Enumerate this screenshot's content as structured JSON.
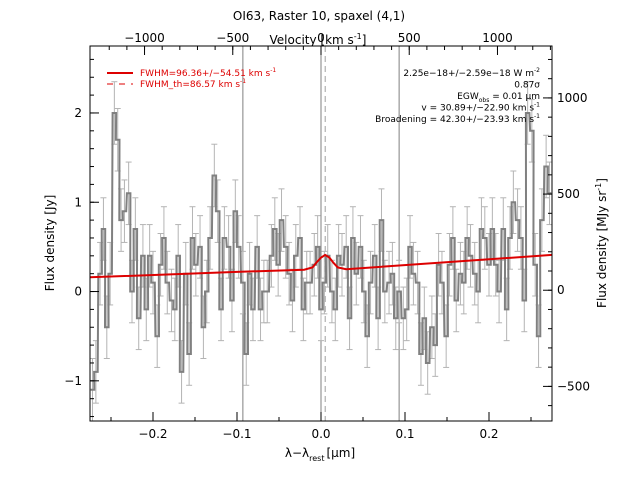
{
  "chart_data": {
    "type": "line",
    "title": "OI63, Raster 10, spaxel (4,1)",
    "xlabel": "λ−λ",
    "xlabel_sub": "rest",
    "xlabel_unit": "[μm]",
    "ylabel_left": "Flux density [Jy]",
    "ylabel_right": "Flux density [MJy sr",
    "ylabel_right_sup": "-1",
    "ylabel_right_close": "]",
    "top_axis_label": "Velocity [km s",
    "top_axis_label_sup": "-1",
    "top_axis_label_close": "]",
    "xlim": [
      -0.275,
      0.275
    ],
    "ylim": [
      -1.45,
      2.75
    ],
    "ylim_right": [
      -680,
      1270
    ],
    "x_ticks": [
      -0.2,
      -0.1,
      0.0,
      0.1,
      0.2
    ],
    "x_tick_labels": [
      "−0.2",
      "−0.1",
      "0.0",
      "0.1",
      "0.2"
    ],
    "y_ticks": [
      -1,
      0,
      1,
      2
    ],
    "y_tick_labels": [
      "−1",
      "0",
      "1",
      "2"
    ],
    "y_right_ticks": [
      -500,
      0,
      500,
      1000
    ],
    "y_right_tick_labels": [
      "−500",
      "0",
      "500",
      "1000"
    ],
    "top_ticks_velocity": [
      -1000,
      -500,
      0,
      500,
      1000
    ],
    "top_tick_labels": [
      "−1000",
      "−500",
      "0",
      "500",
      "1000"
    ],
    "velocity_per_micron": 4760,
    "vertical_lines": [
      -0.093,
      0.0,
      0.093
    ],
    "center_dashed_line": 0.005,
    "legend": [
      {
        "label": "FWHM=96.36+/−54.51 km s",
        "sup": "-1",
        "style": "solid"
      },
      {
        "label": "FWHM_th=86.57 km s",
        "sup": "-1",
        "style": "dashed"
      }
    ],
    "annotations": [
      {
        "text": "2.25e−18+/−2.59e−18 W m",
        "sup": "-2"
      },
      {
        "text": "0.87σ"
      },
      {
        "text": "EGW",
        "sub": "obs",
        "tail": " = 0.01 μm"
      },
      {
        "text": "v = 30.89+/−22.90 km s",
        "sup": "-1"
      },
      {
        "text": "Broadening = 42.30+/−23.93 km s",
        "sup": "-1"
      }
    ],
    "series": [
      {
        "name": "data",
        "x": [
          -0.272,
          -0.268,
          -0.263,
          -0.259,
          -0.255,
          -0.251,
          -0.246,
          -0.242,
          -0.238,
          -0.234,
          -0.229,
          -0.225,
          -0.221,
          -0.217,
          -0.212,
          -0.208,
          -0.204,
          -0.2,
          -0.195,
          -0.191,
          -0.187,
          -0.183,
          -0.178,
          -0.174,
          -0.17,
          -0.166,
          -0.161,
          -0.157,
          -0.153,
          -0.149,
          -0.144,
          -0.14,
          -0.136,
          -0.132,
          -0.127,
          -0.123,
          -0.119,
          -0.115,
          -0.11,
          -0.106,
          -0.102,
          -0.098,
          -0.093,
          -0.089,
          -0.085,
          -0.081,
          -0.076,
          -0.072,
          -0.068,
          -0.064,
          -0.059,
          -0.055,
          -0.051,
          -0.047,
          -0.042,
          -0.038,
          -0.034,
          -0.03,
          -0.025,
          -0.021,
          -0.017,
          -0.013,
          -0.008,
          -0.004,
          0.0,
          0.004,
          0.008,
          0.013,
          0.017,
          0.021,
          0.025,
          0.03,
          0.034,
          0.038,
          0.042,
          0.047,
          0.051,
          0.055,
          0.059,
          0.064,
          0.068,
          0.072,
          0.076,
          0.081,
          0.085,
          0.089,
          0.093,
          0.098,
          0.102,
          0.106,
          0.11,
          0.115,
          0.119,
          0.123,
          0.127,
          0.132,
          0.136,
          0.14,
          0.144,
          0.149,
          0.153,
          0.157,
          0.161,
          0.166,
          0.17,
          0.174,
          0.178,
          0.183,
          0.187,
          0.191,
          0.195,
          0.2,
          0.204,
          0.208,
          0.212,
          0.217,
          0.221,
          0.225,
          0.229,
          0.234,
          0.238,
          0.242,
          0.246,
          0.251,
          0.255,
          0.259,
          0.263,
          0.268,
          0.272
        ],
        "y": [
          -1.1,
          -0.9,
          0.2,
          0.7,
          -0.4,
          0.2,
          2.0,
          1.7,
          0.8,
          0.9,
          1.1,
          0.0,
          0.7,
          -0.3,
          0.4,
          -0.2,
          0.4,
          0.1,
          -0.5,
          0.3,
          0.6,
          0.1,
          -0.1,
          -0.2,
          0.4,
          -0.9,
          0.2,
          -0.7,
          0.6,
          0.3,
          0.5,
          -0.4,
          0.0,
          0.6,
          1.3,
          0.9,
          -0.2,
          0.6,
          0.5,
          -0.1,
          0.9,
          0.5,
          0.1,
          -0.7,
          0.2,
          -0.2,
          0.5,
          -0.2,
          0.0,
          0.0,
          0.4,
          0.7,
          0.3,
          0.8,
          0.5,
          0.2,
          -0.1,
          0.4,
          0.6,
          -0.2,
          0.1,
          0.1,
          0.3,
          0.5,
          -0.2,
          0.1,
          0.4,
          0.0,
          -0.2,
          0.4,
          0.3,
          0.5,
          -0.3,
          0.6,
          0.2,
          0.5,
          0.0,
          -0.5,
          0.1,
          0.4,
          -0.3,
          0.8,
          0.0,
          0.1,
          0.2,
          -0.3,
          0.0,
          -0.3,
          -0.2,
          0.5,
          0.2,
          0.1,
          -0.7,
          -0.3,
          -0.8,
          -0.4,
          -0.6,
          0.3,
          0.1,
          -0.5,
          0.3,
          0.6,
          -0.1,
          0.2,
          0.1,
          0.6,
          0.4,
          0.2,
          0.0,
          0.7,
          0.6,
          0.3,
          0.7,
          0.3,
          0.0,
          0.7,
          -0.2,
          0.6,
          1.0,
          0.8,
          0.6,
          -0.1,
          2.0,
          1.8,
          0.3,
          -0.5,
          0.8,
          1.4,
          1.1
        ],
        "err": 0.35
      },
      {
        "name": "fit",
        "x": [
          -0.275,
          -0.1,
          -0.02,
          -0.01,
          -0.005,
          0.0,
          0.005,
          0.01,
          0.015,
          0.02,
          0.03,
          0.275
        ],
        "y": [
          0.16,
          0.22,
          0.245,
          0.27,
          0.33,
          0.38,
          0.41,
          0.38,
          0.32,
          0.27,
          0.25,
          0.41
        ]
      }
    ],
    "colors": {
      "data": "#808080",
      "errorbar": "#b4b4b4",
      "fit": "#dd0000",
      "guide": "#808080"
    },
    "grid": false,
    "legend_position": "top-left"
  }
}
